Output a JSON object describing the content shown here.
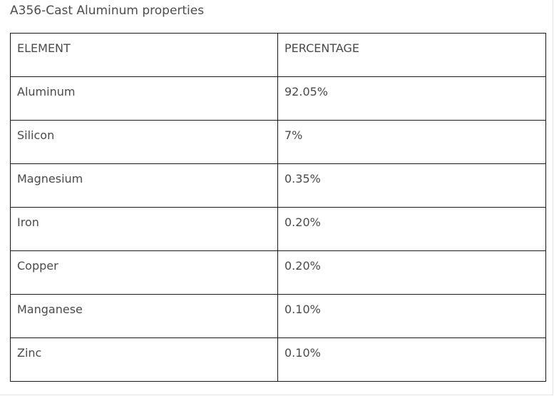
{
  "title": "A356-Cast Aluminum properties",
  "table": {
    "headers": [
      "ELEMENT",
      "PERCENTAGE"
    ],
    "rows": [
      {
        "element": "Aluminum",
        "percentage": "92.05%"
      },
      {
        "element": "Silicon",
        "percentage": "7%"
      },
      {
        "element": "Magnesium",
        "percentage": "0.35%"
      },
      {
        "element": "Iron",
        "percentage": "0.20%"
      },
      {
        "element": "Copper",
        "percentage": "0.20%"
      },
      {
        "element": "Manganese",
        "percentage": "0.10%"
      },
      {
        "element": "Zinc",
        "percentage": "0.10%"
      }
    ]
  }
}
